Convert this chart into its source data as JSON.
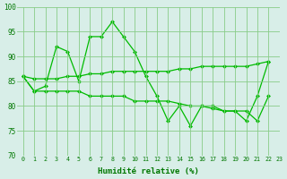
{
  "x": [
    0,
    1,
    2,
    3,
    4,
    5,
    6,
    7,
    8,
    9,
    10,
    11,
    12,
    13,
    14,
    15,
    16,
    17,
    18,
    19,
    20,
    21,
    22,
    23
  ],
  "y1": [
    86,
    83,
    84,
    92,
    91,
    85,
    94,
    94,
    97,
    94,
    91,
    86,
    82,
    77,
    80,
    76,
    80,
    80,
    79,
    79,
    77,
    82,
    89,
    null
  ],
  "y2": [
    86,
    85.5,
    85.5,
    85.5,
    86,
    86,
    86.5,
    86.5,
    87,
    87,
    87,
    87,
    87,
    87,
    87.5,
    87.5,
    88,
    88,
    88,
    88,
    88,
    88.5,
    89,
    null
  ],
  "y3": [
    86,
    83,
    83,
    83,
    83,
    83,
    82,
    82,
    82,
    82,
    81,
    81,
    81,
    81,
    80.5,
    80,
    80,
    79.5,
    79,
    79,
    79,
    77,
    82,
    null
  ],
  "bg_color": "#d8eee8",
  "grid_color": "#88cc88",
  "line_color": "#00bb00",
  "xlabel": "Humidité relative (%)",
  "ylim": [
    70,
    100
  ],
  "xlim": [
    -0.5,
    23
  ],
  "yticks": [
    70,
    75,
    80,
    85,
    90,
    95,
    100
  ],
  "xticks": [
    0,
    1,
    2,
    3,
    4,
    5,
    6,
    7,
    8,
    9,
    10,
    11,
    12,
    13,
    14,
    15,
    16,
    17,
    18,
    19,
    20,
    21,
    22,
    23
  ]
}
